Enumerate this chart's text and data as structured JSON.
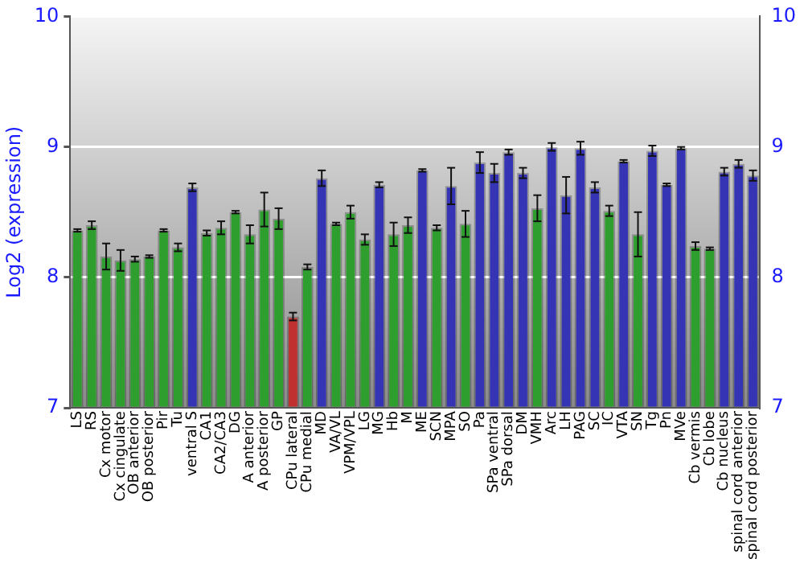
{
  "chart_data": {
    "type": "bar",
    "ylabel": "Log2 (expression)",
    "categories": [
      "LS",
      "RS",
      "Cx motor",
      "Cx cingulate",
      "OB anterior",
      "OB posterior",
      "Pir",
      "Tu",
      "ventral S",
      "CA1",
      "CA2/CA3",
      "DG",
      "A anterior",
      "A posterior",
      "GP",
      "CPu lateral",
      "CPu medial",
      "MD",
      "VA/VL",
      "VPM/VPL",
      "LG",
      "MG",
      "Hb",
      "M",
      "ME",
      "SCN",
      "MPA",
      "SO",
      "Pa",
      "SPa ventral",
      "SPa dorsal",
      "DM",
      "VMH",
      "Arc",
      "LH",
      "PAG",
      "SC",
      "IC",
      "VTA",
      "SN",
      "Tg",
      "Pn",
      "MVe",
      "Cb vermis",
      "Cb lobe",
      "Cb nucleus",
      "spinal cord anterior",
      "spinal cord posterior"
    ],
    "values": [
      8.36,
      8.4,
      8.16,
      8.13,
      8.14,
      8.16,
      8.36,
      8.23,
      8.69,
      8.34,
      8.38,
      8.5,
      8.33,
      8.52,
      8.45,
      7.7,
      8.08,
      8.76,
      8.41,
      8.5,
      8.29,
      8.71,
      8.33,
      8.4,
      8.82,
      8.38,
      8.7,
      8.41,
      8.88,
      8.8,
      8.96,
      8.8,
      8.53,
      9.0,
      8.63,
      8.99,
      8.69,
      8.51,
      8.89,
      8.33,
      8.97,
      8.71,
      8.99,
      8.24,
      8.22,
      8.81,
      8.87,
      8.78
    ],
    "errors": [
      0.01,
      0.03,
      0.1,
      0.08,
      0.02,
      0.01,
      0.01,
      0.03,
      0.03,
      0.02,
      0.05,
      0.01,
      0.07,
      0.13,
      0.08,
      0.03,
      0.02,
      0.06,
      0.01,
      0.05,
      0.04,
      0.02,
      0.09,
      0.06,
      0.01,
      0.02,
      0.14,
      0.1,
      0.08,
      0.07,
      0.02,
      0.04,
      0.1,
      0.03,
      0.14,
      0.05,
      0.04,
      0.04,
      0.01,
      0.17,
      0.04,
      0.01,
      0.01,
      0.03,
      0.01,
      0.03,
      0.03,
      0.04
    ],
    "colors": [
      "#2e9e2e",
      "#2e9e2e",
      "#2e9e2e",
      "#2e9e2e",
      "#2e9e2e",
      "#2e9e2e",
      "#2e9e2e",
      "#2e9e2e",
      "#3434b4",
      "#2e9e2e",
      "#2e9e2e",
      "#2e9e2e",
      "#2e9e2e",
      "#2e9e2e",
      "#2e9e2e",
      "#c03030",
      "#2e9e2e",
      "#3434b4",
      "#2e9e2e",
      "#2e9e2e",
      "#2e9e2e",
      "#3434b4",
      "#2e9e2e",
      "#2e9e2e",
      "#3434b4",
      "#2e9e2e",
      "#3434b4",
      "#2e9e2e",
      "#3434b4",
      "#3434b4",
      "#3434b4",
      "#3434b4",
      "#2e9e2e",
      "#3434b4",
      "#3434b4",
      "#3434b4",
      "#3434b4",
      "#2e9e2e",
      "#3434b4",
      "#2e9e2e",
      "#3434b4",
      "#3434b4",
      "#3434b4",
      "#2e9e2e",
      "#2e9e2e",
      "#3434b4",
      "#3434b4",
      "#3434b4"
    ],
    "ylim": [
      7,
      10
    ],
    "yticks": [
      7,
      8,
      9,
      10
    ],
    "y2lim": [
      7,
      10
    ],
    "y2ticks": [
      7,
      8,
      9,
      10
    ],
    "grid": "y",
    "legend": false
  }
}
